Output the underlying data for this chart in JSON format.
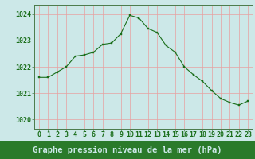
{
  "hours": [
    0,
    1,
    2,
    3,
    4,
    5,
    6,
    7,
    8,
    9,
    10,
    11,
    12,
    13,
    14,
    15,
    16,
    17,
    18,
    19,
    20,
    21,
    22,
    23
  ],
  "pressure": [
    1021.6,
    1021.6,
    1021.8,
    1022.0,
    1022.4,
    1022.45,
    1022.55,
    1022.85,
    1022.9,
    1023.25,
    1023.95,
    1023.85,
    1023.45,
    1023.3,
    1022.8,
    1022.55,
    1022.0,
    1021.7,
    1021.45,
    1021.1,
    1020.8,
    1020.65,
    1020.55,
    1020.7
  ],
  "line_color": "#1a6e1a",
  "marker_color": "#1a6e1a",
  "bg_color": "#cce8e8",
  "grid_color": "#e8a0a0",
  "title": "Graphe pression niveau de la mer (hPa)",
  "tick_color": "#1a6e1a",
  "ylabel_ticks": [
    1020,
    1021,
    1022,
    1023,
    1024
  ],
  "ylim": [
    1019.65,
    1024.35
  ],
  "xlim": [
    -0.5,
    23.5
  ],
  "title_fontsize": 7.5,
  "tick_fontsize": 6.0,
  "border_color": "#4a7a4a",
  "title_bar_color": "#2a7a2a",
  "title_text_color": "#cce8e8"
}
